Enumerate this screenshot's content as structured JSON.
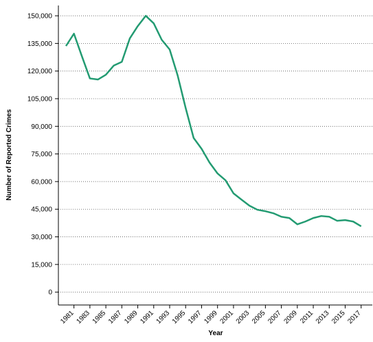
{
  "chart_data": {
    "type": "line",
    "x_label": "Year",
    "y_label": "Number of Reported Crimes",
    "x": [
      1980,
      1981,
      1982,
      1983,
      1984,
      1985,
      1986,
      1987,
      1988,
      1989,
      1990,
      1991,
      1992,
      1993,
      1994,
      1995,
      1996,
      1997,
      1998,
      1999,
      2000,
      2001,
      2002,
      2003,
      2004,
      2005,
      2006,
      2007,
      2008,
      2009,
      2010,
      2011,
      2012,
      2013,
      2014,
      2015,
      2016,
      2017
    ],
    "series": [
      {
        "color": "#239b72",
        "values": [
          133600,
          140300,
          128000,
          116000,
          115400,
          118000,
          123000,
          125000,
          137700,
          144400,
          150000,
          145900,
          137000,
          131700,
          117600,
          100000,
          83700,
          77800,
          70300,
          64400,
          60700,
          53600,
          50200,
          46900,
          44700,
          43900,
          42800,
          40900,
          40200,
          36800,
          38300,
          40200,
          41300,
          40900,
          38700,
          39100,
          38300,
          35700
        ]
      }
    ],
    "xlim": [
      1979.05,
      2018.4
    ],
    "xticks": [
      1981,
      1983,
      1985,
      1987,
      1989,
      1991,
      1993,
      1995,
      1997,
      1999,
      2001,
      2003,
      2005,
      2007,
      2009,
      2011,
      2013,
      2015,
      2017
    ],
    "ylim": [
      -7000,
      155600
    ],
    "yticks": [
      0,
      {
        "value": 15000,
        "label": "15,000"
      },
      {
        "value": 30000,
        "label": "30,000"
      },
      {
        "value": 45000,
        "label": "45,000"
      },
      {
        "value": 60000,
        "label": "60,000"
      },
      {
        "value": 75000,
        "label": "75,000"
      },
      {
        "value": 90000,
        "label": "90,000"
      },
      {
        "value": 105000,
        "label": "105,000"
      },
      {
        "value": 120000,
        "label": "120,000"
      },
      {
        "value": 135000,
        "label": "135,000"
      },
      {
        "value": 150000,
        "label": "150,000"
      }
    ],
    "grid": true
  }
}
